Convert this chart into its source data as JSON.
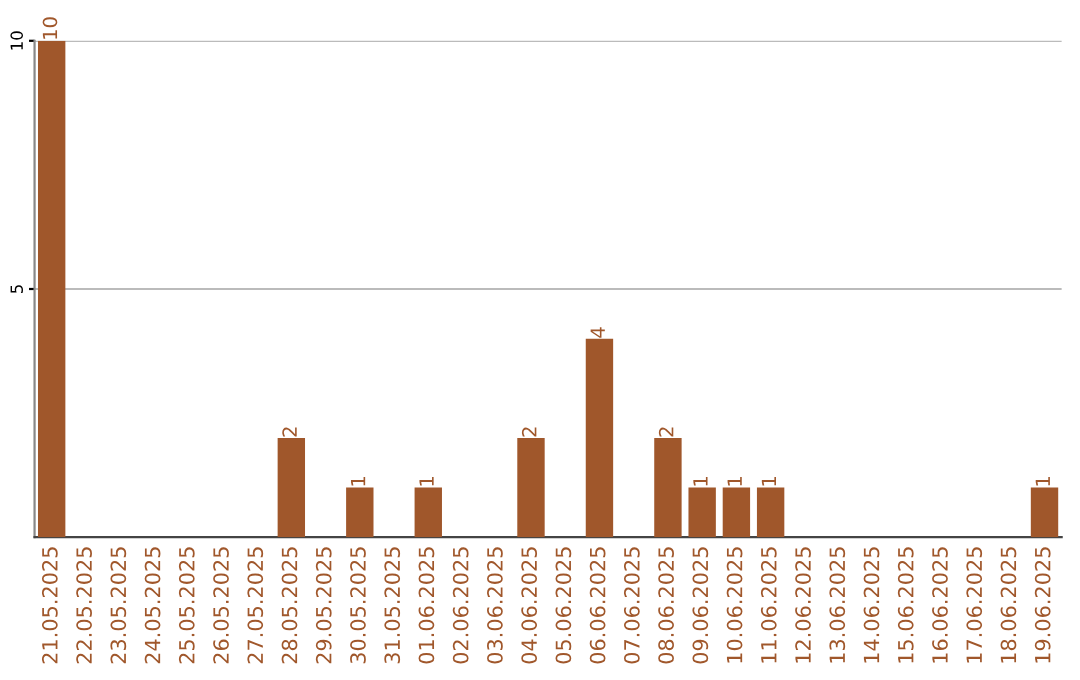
{
  "chart_data": {
    "type": "bar",
    "categories": [
      "21.05.2025",
      "22.05.2025",
      "23.05.2025",
      "24.05.2025",
      "25.05.2025",
      "26.05.2025",
      "27.05.2025",
      "28.05.2025",
      "29.05.2025",
      "30.05.2025",
      "31.05.2025",
      "01.06.2025",
      "02.06.2025",
      "03.06.2025",
      "04.06.2025",
      "05.06.2025",
      "06.06.2025",
      "07.06.2025",
      "08.06.2025",
      "09.06.2025",
      "10.06.2025",
      "11.06.2025",
      "12.06.2025",
      "13.06.2025",
      "14.06.2025",
      "15.06.2025",
      "16.06.2025",
      "17.06.2025",
      "18.06.2025",
      "19.06.2025"
    ],
    "values": [
      10,
      0,
      0,
      0,
      0,
      0,
      0,
      2,
      0,
      1,
      0,
      1,
      0,
      0,
      2,
      0,
      4,
      0,
      2,
      1,
      1,
      1,
      0,
      0,
      0,
      0,
      0,
      0,
      0,
      1
    ],
    "value_labels": [
      "10",
      null,
      null,
      null,
      null,
      null,
      null,
      "2",
      null,
      "1",
      null,
      "1",
      null,
      null,
      "2",
      null,
      "4",
      null,
      "2",
      "1",
      "1",
      "1",
      null,
      null,
      null,
      null,
      null,
      null,
      null,
      "1"
    ],
    "color": "#a0572b",
    "ylim": [
      0,
      10
    ],
    "yticks": [
      5,
      10
    ],
    "grid": "y"
  }
}
